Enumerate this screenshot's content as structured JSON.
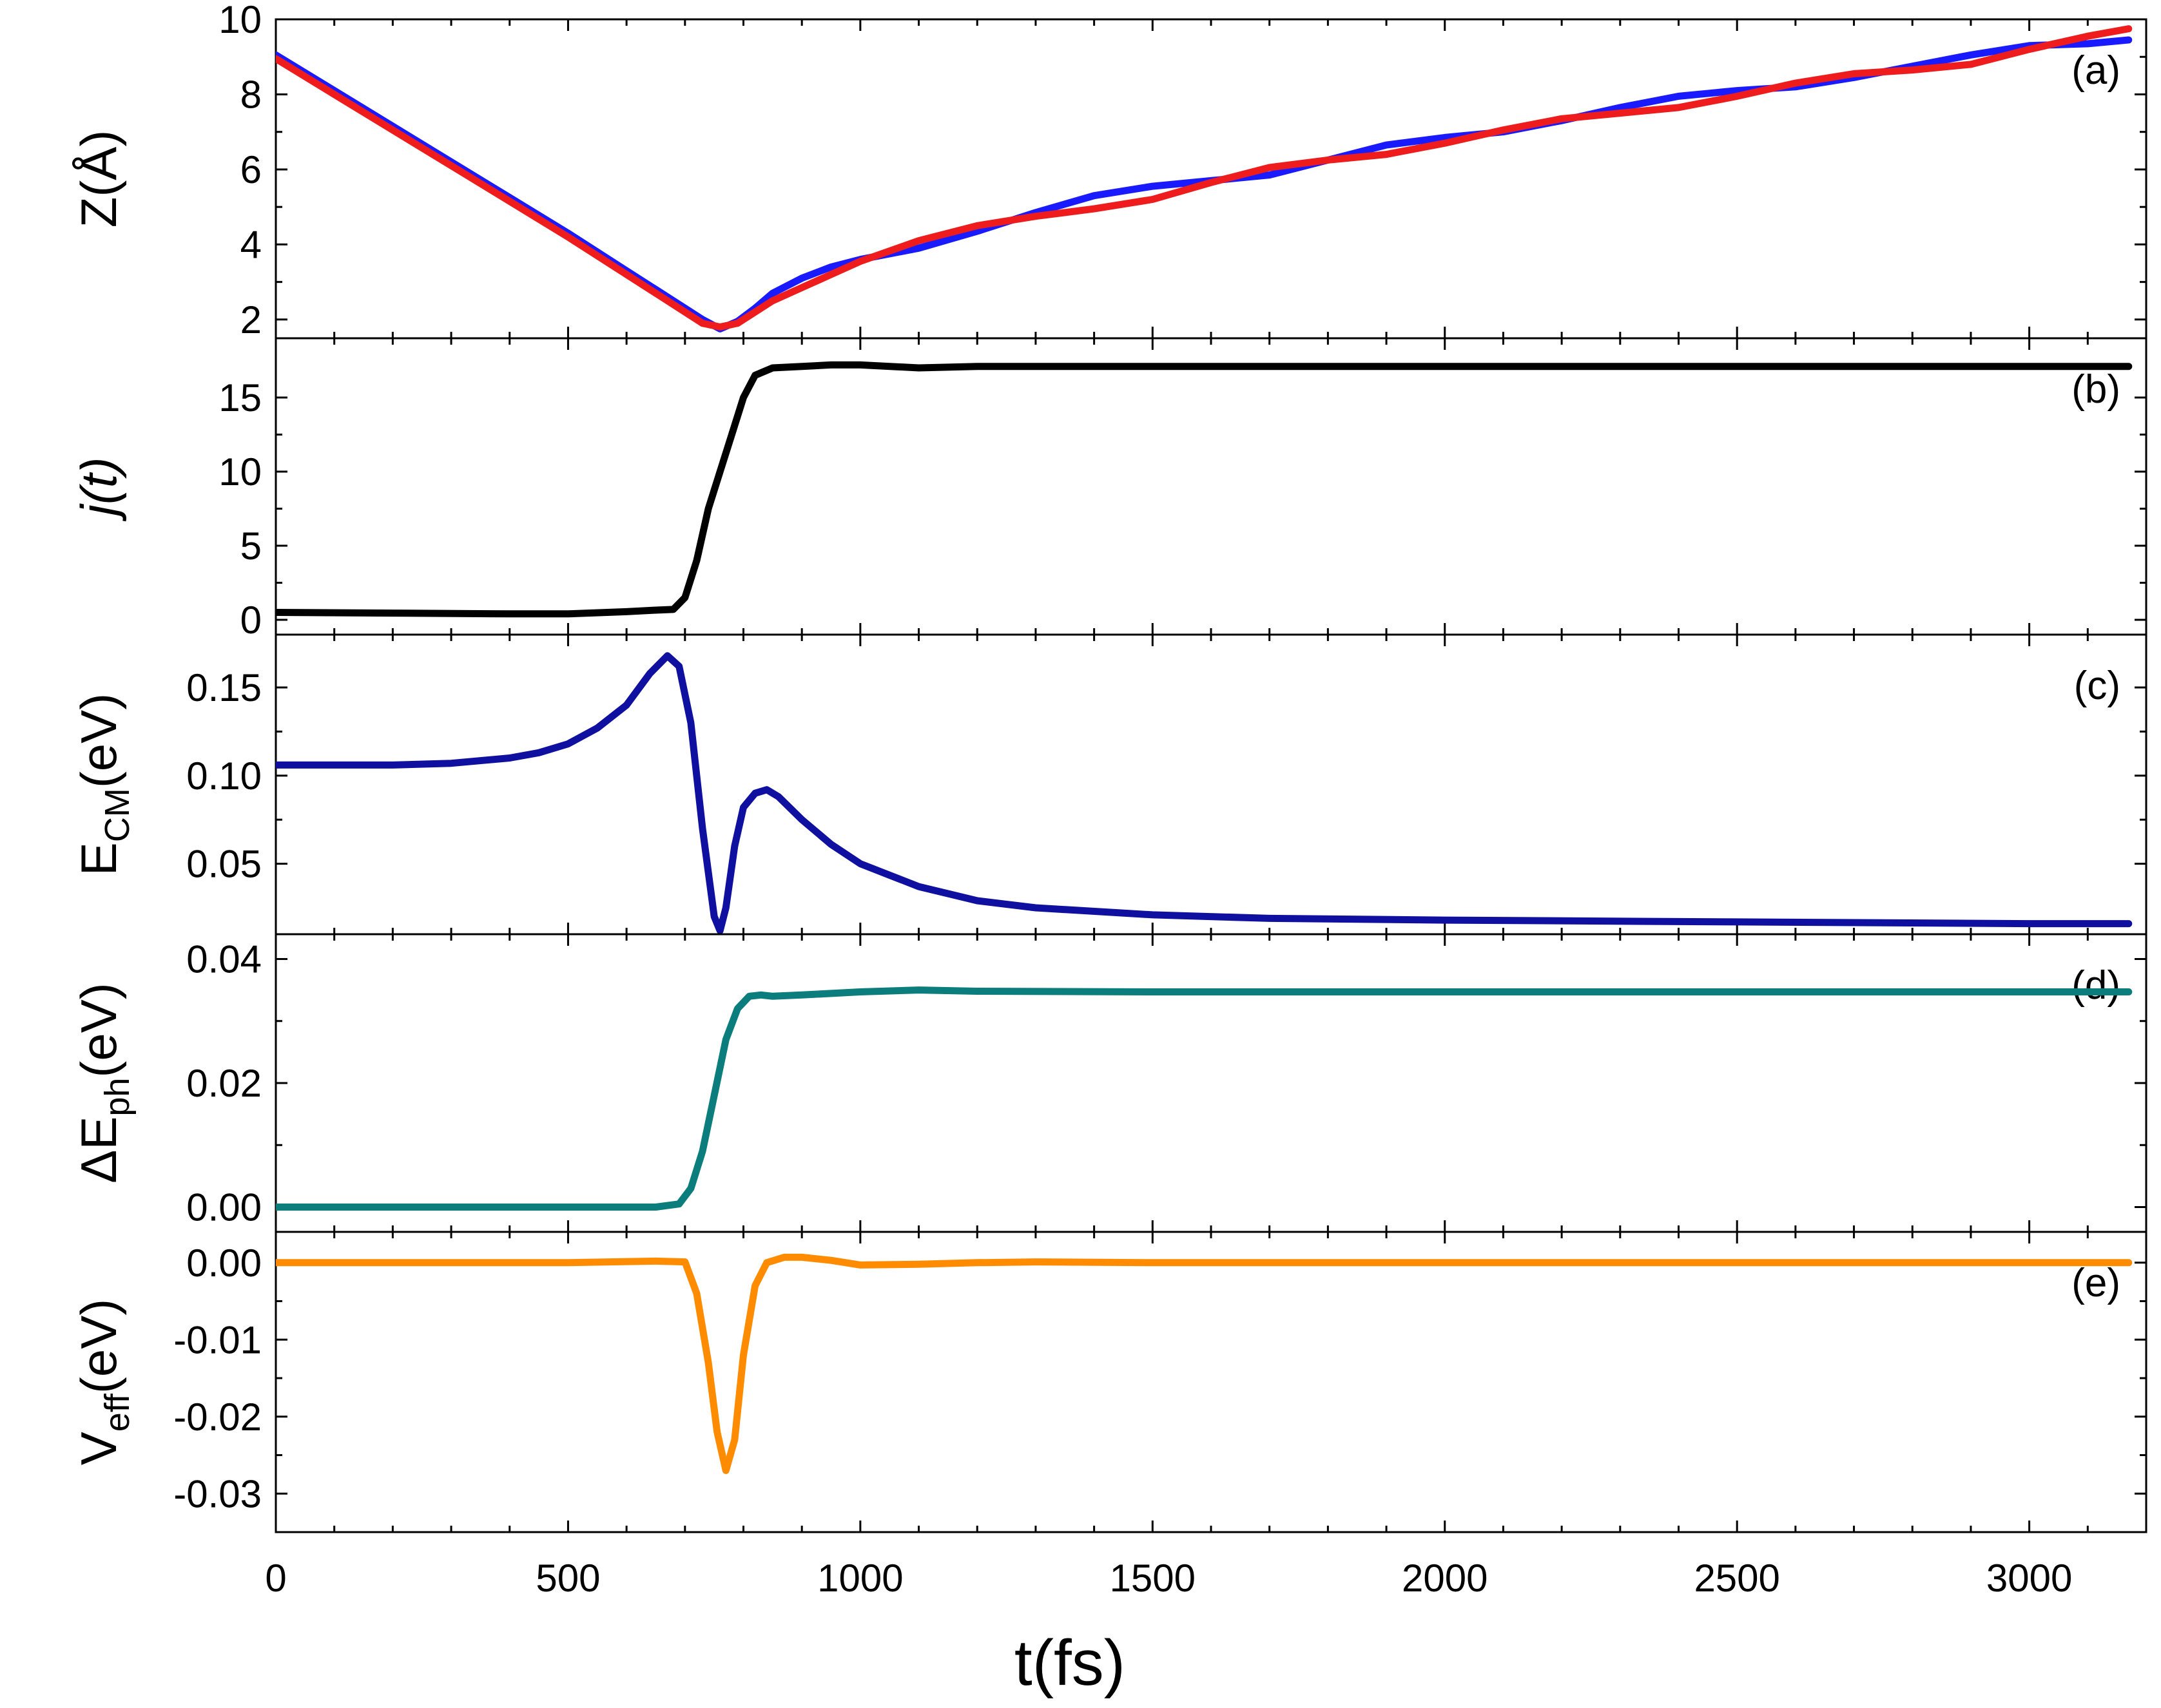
{
  "chart_data": {
    "type": "line",
    "layout": "stacked-panels-shared-x",
    "x_axis": {
      "label": "t(fs)",
      "lim": [
        0,
        3200
      ],
      "ticks": [
        0,
        500,
        1000,
        1500,
        2000,
        2500,
        3000
      ],
      "tick_labels": [
        "0",
        "500",
        "1000",
        "1500",
        "2000",
        "2500",
        "3000"
      ]
    },
    "panels": [
      {
        "id": "a",
        "tag": "(a)",
        "ylabel": {
          "main": "Z(Å)",
          "sub": ""
        },
        "ylim": [
          1.5,
          10
        ],
        "yticks": [
          2,
          4,
          6,
          8,
          10
        ],
        "ytick_labels": [
          "2",
          "4",
          "6",
          "8",
          "10"
        ],
        "series": [
          {
            "name": "blue",
            "color": "#1a1aff",
            "x": [
              0,
              100,
              200,
              300,
              400,
              500,
              600,
              650,
              700,
              730,
              760,
              790,
              820,
              850,
              900,
              950,
              1000,
              1100,
              1200,
              1300,
              1400,
              1500,
              1600,
              1700,
              1800,
              1900,
              2000,
              2100,
              2200,
              2300,
              2400,
              2500,
              2600,
              2700,
              2800,
              2900,
              3000,
              3100,
              3170
            ],
            "y": [
              9.05,
              8.1,
              7.15,
              6.2,
              5.25,
              4.3,
              3.3,
              2.8,
              2.3,
              2.0,
              1.75,
              1.95,
              2.3,
              2.7,
              3.1,
              3.4,
              3.6,
              3.9,
              4.35,
              4.85,
              5.3,
              5.55,
              5.7,
              5.85,
              6.25,
              6.65,
              6.85,
              7.0,
              7.3,
              7.65,
              7.95,
              8.1,
              8.2,
              8.45,
              8.75,
              9.05,
              9.3,
              9.35,
              9.45
            ]
          },
          {
            "name": "red",
            "color": "#ee1c1c",
            "x": [
              0,
              100,
              200,
              300,
              400,
              500,
              600,
              650,
              700,
              730,
              760,
              790,
              820,
              850,
              900,
              950,
              1000,
              1100,
              1200,
              1300,
              1400,
              1500,
              1600,
              1700,
              1800,
              1900,
              2000,
              2100,
              2200,
              2300,
              2400,
              2500,
              2600,
              2700,
              2800,
              2900,
              3000,
              3100,
              3170
            ],
            "y": [
              8.95,
              8.0,
              7.05,
              6.1,
              5.15,
              4.2,
              3.2,
              2.7,
              2.2,
              1.9,
              1.8,
              1.9,
              2.2,
              2.5,
              2.85,
              3.2,
              3.55,
              4.1,
              4.5,
              4.75,
              4.95,
              5.2,
              5.65,
              6.05,
              6.25,
              6.4,
              6.7,
              7.05,
              7.35,
              7.5,
              7.65,
              7.95,
              8.3,
              8.55,
              8.65,
              8.8,
              9.2,
              9.55,
              9.75
            ]
          }
        ]
      },
      {
        "id": "b",
        "tag": "(b)",
        "ylabel": {
          "main": "j(t)",
          "sub": ""
        },
        "ylim": [
          -1,
          19
        ],
        "yticks": [
          0,
          5,
          10,
          15
        ],
        "ytick_labels": [
          "0",
          "5",
          "10",
          "15"
        ],
        "series": [
          {
            "name": "j(t)",
            "color": "#000000",
            "x": [
              0,
              200,
              400,
              500,
              600,
              650,
              680,
              700,
              720,
              740,
              760,
              780,
              800,
              820,
              850,
              900,
              950,
              1000,
              1100,
              1200,
              1500,
              2000,
              2500,
              3000,
              3170
            ],
            "y": [
              0.5,
              0.45,
              0.4,
              0.4,
              0.55,
              0.65,
              0.7,
              1.5,
              4.0,
              7.5,
              10.0,
              12.5,
              15.0,
              16.5,
              17.0,
              17.1,
              17.2,
              17.2,
              17.0,
              17.1,
              17.1,
              17.1,
              17.1,
              17.1,
              17.1
            ]
          }
        ]
      },
      {
        "id": "c",
        "tag": "(c)",
        "ylabel": {
          "main": "E",
          "sub": "CM",
          "suffix": "(eV)"
        },
        "ylim": [
          0.01,
          0.18
        ],
        "yticks": [
          0.05,
          0.1,
          0.15
        ],
        "ytick_labels": [
          "0.05",
          "0.10",
          "0.15"
        ],
        "series": [
          {
            "name": "E_CM",
            "color": "#1010a0",
            "x": [
              0,
              200,
              300,
              400,
              450,
              500,
              550,
              600,
              640,
              670,
              690,
              710,
              730,
              750,
              760,
              770,
              785,
              800,
              820,
              840,
              860,
              900,
              950,
              1000,
              1100,
              1200,
              1300,
              1500,
              1700,
              2000,
              2500,
              3000,
              3170
            ],
            "y": [
              0.106,
              0.106,
              0.107,
              0.11,
              0.113,
              0.118,
              0.127,
              0.14,
              0.158,
              0.168,
              0.162,
              0.13,
              0.07,
              0.02,
              0.012,
              0.025,
              0.06,
              0.082,
              0.09,
              0.092,
              0.088,
              0.075,
              0.061,
              0.05,
              0.037,
              0.029,
              0.025,
              0.021,
              0.019,
              0.018,
              0.017,
              0.016,
              0.016
            ]
          }
        ]
      },
      {
        "id": "d",
        "tag": "(d)",
        "ylabel": {
          "main": "ΔE",
          "sub": "ph",
          "suffix": "(eV)"
        },
        "ylim": [
          -0.004,
          0.044
        ],
        "yticks": [
          0.0,
          0.02,
          0.04
        ],
        "ytick_labels": [
          "0.00",
          "0.02",
          "0.04"
        ],
        "series": [
          {
            "name": "ΔE_ph",
            "color": "#0b7d7d",
            "x": [
              0,
              500,
              650,
              690,
              710,
              730,
              750,
              770,
              790,
              810,
              830,
              850,
              900,
              1000,
              1100,
              1200,
              1500,
              2000,
              2500,
              3000,
              3170
            ],
            "y": [
              0.0,
              0.0,
              0.0,
              0.0005,
              0.003,
              0.009,
              0.018,
              0.027,
              0.032,
              0.034,
              0.0342,
              0.034,
              0.0342,
              0.0347,
              0.035,
              0.0348,
              0.0347,
              0.0347,
              0.0347,
              0.0347,
              0.0347
            ]
          }
        ]
      },
      {
        "id": "e",
        "tag": "(e)",
        "ylabel": {
          "main": "V",
          "sub": "eff",
          "suffix": "(eV)"
        },
        "ylim": [
          -0.035,
          0.004
        ],
        "yticks": [
          0.0,
          -0.01,
          -0.02,
          -0.03
        ],
        "ytick_labels": [
          "0.00",
          "-0.01",
          "-0.02",
          "-0.03"
        ],
        "series": [
          {
            "name": "V_eff",
            "color": "#ff8c00",
            "x": [
              0,
              500,
              650,
              700,
              720,
              740,
              755,
              770,
              785,
              800,
              820,
              840,
              870,
              900,
              950,
              1000,
              1100,
              1200,
              1300,
              1500,
              2000,
              2500,
              3000,
              3170
            ],
            "y": [
              0.0,
              0.0,
              0.0002,
              0.0001,
              -0.004,
              -0.013,
              -0.022,
              -0.027,
              -0.023,
              -0.012,
              -0.003,
              0.0,
              0.0007,
              0.0007,
              0.0003,
              -0.0003,
              -0.0002,
              0.0,
              0.0001,
              0.0,
              0.0,
              0.0,
              0.0,
              0.0
            ]
          }
        ]
      }
    ]
  }
}
